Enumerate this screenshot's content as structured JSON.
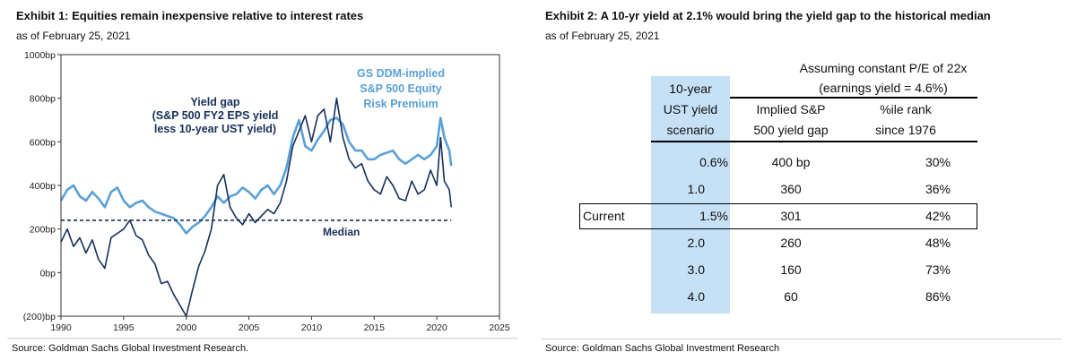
{
  "exhibit1": {
    "title": "Exhibit 1: Equities remain inexpensive relative to interest rates",
    "subtitle": "as of February 25, 2021",
    "source": "Source: Goldman Sachs Global Investment Research."
  },
  "exhibit2": {
    "title": "Exhibit 2: A 10-yr yield at 2.1% would bring the yield gap to the historical median",
    "subtitle": "as of February 25, 2021",
    "source": "Source: Goldman Sachs Global Investment Research",
    "header_group": "Assuming constant P/E of 22x",
    "header_group_sub": "(earnings yield = 4.6%)",
    "col1_header": [
      "10-year",
      "UST yield",
      "scenario"
    ],
    "col2_header": [
      "Implied S&P",
      "500 yield gap"
    ],
    "col3_header": [
      "%ile rank",
      "since 1976"
    ],
    "highlight_color": "#c6e0f5",
    "rows": [
      {
        "label": "",
        "yield": "0.6%",
        "gap": "400 bp",
        "rank": "30%"
      },
      {
        "label": "",
        "yield": "1.0",
        "gap": "360",
        "rank": "36%"
      },
      {
        "label": "Current",
        "yield": "1.5%",
        "gap": "301",
        "rank": "42%"
      },
      {
        "label": "",
        "yield": "2.0",
        "gap": "260",
        "rank": "48%"
      },
      {
        "label": "",
        "yield": "3.0",
        "gap": "160",
        "rank": "73%"
      },
      {
        "label": "",
        "yield": "4.0",
        "gap": "60",
        "rank": "86%"
      }
    ]
  },
  "chart_data": [
    {
      "type": "line",
      "title": "Exhibit 1: Equities remain inexpensive relative to interest rates",
      "xlabel": "",
      "ylabel": "",
      "xlim": [
        1990,
        2025
      ],
      "ylim": [
        -200,
        1000
      ],
      "x_ticks": [
        "1990",
        "1995",
        "2000",
        "2005",
        "2010",
        "2015",
        "2020",
        "2025"
      ],
      "y_ticks": [
        "(200)bp",
        "0bp",
        "200bp",
        "400bp",
        "600bp",
        "800bp",
        "1000bp"
      ],
      "series": [
        {
          "name": "GS DDM-implied S&P 500 Equity Risk Premium",
          "label_lines": [
            "GS DDM-implied",
            "S&P 500 Equity",
            "Risk Premium"
          ],
          "color": "#5aa0d8",
          "x": [
            1990,
            1990.5,
            1991,
            1991.5,
            1992,
            1992.5,
            1993,
            1993.5,
            1994,
            1994.5,
            1995,
            1995.5,
            1996,
            1996.5,
            1997,
            1997.5,
            1998,
            1998.5,
            1999,
            1999.5,
            2000,
            2000.5,
            2001,
            2001.5,
            2002,
            2002.5,
            2003,
            2003.5,
            2004,
            2004.5,
            2005,
            2005.5,
            2006,
            2006.5,
            2007,
            2007.5,
            2008,
            2008.5,
            2009,
            2009.5,
            2010,
            2010.5,
            2011,
            2011.5,
            2012,
            2012.5,
            2013,
            2013.5,
            2014,
            2014.5,
            2015,
            2015.5,
            2016,
            2016.5,
            2017,
            2017.5,
            2018,
            2018.5,
            2019,
            2019.5,
            2020,
            2020.3,
            2020.6,
            2021,
            2021.15
          ],
          "values": [
            330,
            380,
            400,
            350,
            330,
            370,
            340,
            300,
            370,
            390,
            330,
            300,
            320,
            330,
            300,
            280,
            270,
            260,
            250,
            220,
            180,
            210,
            230,
            260,
            300,
            350,
            320,
            350,
            360,
            390,
            370,
            340,
            380,
            400,
            360,
            400,
            480,
            620,
            700,
            580,
            560,
            610,
            650,
            700,
            710,
            680,
            600,
            560,
            560,
            520,
            520,
            540,
            550,
            560,
            520,
            500,
            520,
            540,
            520,
            540,
            580,
            710,
            620,
            560,
            490
          ]
        },
        {
          "name": "Yield gap (S&P 500 FY2 EPS yield less 10-year UST yield)",
          "label_lines": [
            "Yield gap",
            "(S&P 500 FY2 EPS yield",
            "less 10-year UST yield)"
          ],
          "color": "#17305a",
          "x": [
            1990,
            1990.5,
            1991,
            1991.5,
            1992,
            1992.5,
            1993,
            1993.5,
            1994,
            1994.5,
            1995,
            1995.5,
            1996,
            1996.5,
            1997,
            1997.5,
            1998,
            1998.5,
            1999,
            1999.5,
            2000,
            2000.5,
            2001,
            2001.5,
            2002,
            2002.5,
            2003,
            2003.5,
            2004,
            2004.5,
            2005,
            2005.5,
            2006,
            2006.5,
            2007,
            2007.5,
            2008,
            2008.5,
            2009,
            2009.5,
            2010,
            2010.5,
            2011,
            2011.5,
            2012,
            2012.5,
            2013,
            2013.5,
            2014,
            2014.5,
            2015,
            2015.5,
            2016,
            2016.5,
            2017,
            2017.5,
            2018,
            2018.5,
            2019,
            2019.5,
            2020,
            2020.3,
            2020.6,
            2021,
            2021.15
          ],
          "values": [
            140,
            200,
            120,
            160,
            90,
            150,
            60,
            20,
            160,
            180,
            200,
            240,
            170,
            150,
            80,
            40,
            -50,
            -40,
            -100,
            -150,
            -200,
            -80,
            30,
            100,
            200,
            400,
            450,
            300,
            250,
            220,
            270,
            230,
            260,
            290,
            270,
            320,
            420,
            580,
            650,
            720,
            600,
            720,
            750,
            600,
            800,
            620,
            520,
            480,
            500,
            420,
            380,
            360,
            440,
            400,
            340,
            330,
            420,
            360,
            380,
            470,
            400,
            620,
            420,
            380,
            300
          ]
        },
        {
          "name": "Median",
          "color": "#17305a",
          "style": "dashed",
          "x": [
            1990,
            2021.15
          ],
          "values": [
            240,
            240
          ]
        }
      ]
    }
  ]
}
